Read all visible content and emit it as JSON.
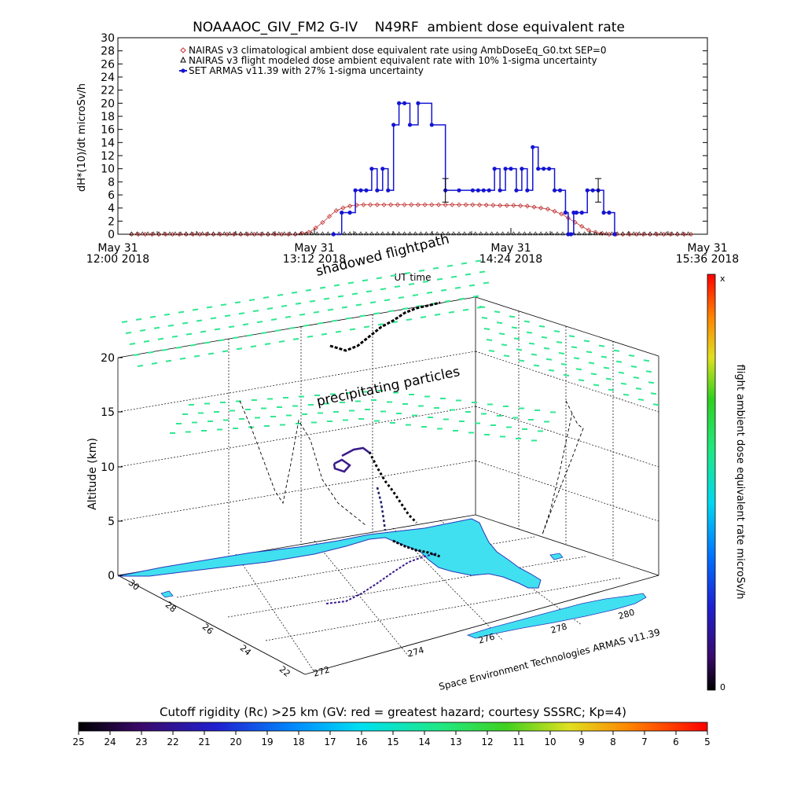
{
  "chart_data": [
    {
      "type": "line",
      "title": "NOAAAOC_GIV_FM2 G-IV    N49RF  ambient dose equivalent rate",
      "ylabel": "dH*(10)/dt microSv/h",
      "xlabel": "UT time",
      "ylim": [
        0,
        30
      ],
      "yticks": [
        "0",
        "2",
        "4",
        "6",
        "8",
        "10",
        "12",
        "14",
        "16",
        "18",
        "20",
        "22",
        "24",
        "26",
        "28",
        "30"
      ],
      "xlim_minutes_after_1200": [
        0,
        216
      ],
      "xticks": [
        {
          "minute": 0,
          "line1": "May 31",
          "line2": "12:00 2018"
        },
        {
          "minute": 72,
          "line1": "May 31",
          "line2": "13:12 2018"
        },
        {
          "minute": 144,
          "line1": "May 31",
          "line2": "14:24 2018"
        },
        {
          "minute": 216,
          "line1": "May 31",
          "line2": "15:36 2018"
        }
      ],
      "legend_position": "top",
      "legend": [
        {
          "label": "NAIRAS v3 climatological ambient dose equivalent rate using AmbDoseEq_G0.txt SEP=0",
          "color": "#c03030",
          "symbol": "diamond"
        },
        {
          "label": "NAIRAS v3 flight modeled dose ambient equivalent rate with 10% 1-sigma uncertainty",
          "color": "#000000",
          "symbol": "triangle"
        },
        {
          "label": "SET ARMAS v11.39 with 27% 1-sigma uncertainty",
          "color": "#1414d2",
          "symbol": "dot"
        }
      ],
      "series": [
        {
          "name": "NAIRAS v3 climatological ambient dose equivalent rate using AmbDoseEq_G0.txt SEP=0",
          "color": "#c03030",
          "x": [
            5,
            10,
            20,
            30,
            40,
            50,
            60,
            65,
            70,
            72,
            75,
            78,
            80,
            83,
            86,
            90,
            100,
            110,
            120,
            130,
            140,
            145,
            150,
            155,
            158,
            160,
            163,
            166,
            170,
            173,
            176,
            180,
            190,
            200,
            210
          ],
          "y": [
            0,
            0,
            0,
            0,
            0,
            0,
            0,
            0,
            0.3,
            0.8,
            1.8,
            2.9,
            3.6,
            4.1,
            4.4,
            4.5,
            4.5,
            4.5,
            4.5,
            4.5,
            4.4,
            4.4,
            4.3,
            4.0,
            3.8,
            3.5,
            3.0,
            2.2,
            1.2,
            0.5,
            0.2,
            0,
            0,
            0,
            0
          ]
        },
        {
          "name": "NAIRAS v3 flight modeled dose ambient equivalent rate with 10% 1-sigma uncertainty",
          "color": "#000000",
          "x": [
            5,
            20,
            40,
            60,
            70,
            80,
            90,
            100,
            110,
            120,
            130,
            140,
            150,
            160,
            165,
            175,
            190,
            210
          ],
          "y": [
            0,
            0,
            0,
            0,
            0,
            0,
            0,
            0,
            0,
            0,
            0,
            0,
            0,
            0,
            0,
            0,
            0,
            0
          ]
        },
        {
          "name": "SET ARMAS v11.39 with 27% 1-sigma uncertainty",
          "color": "#1414d2",
          "x": [
            79,
            82,
            85,
            87,
            89,
            91,
            93,
            95,
            97,
            99,
            101,
            103,
            105,
            107,
            110,
            115,
            120,
            125,
            130,
            132,
            134,
            136,
            138,
            140,
            142,
            144,
            146,
            148,
            150,
            152,
            154,
            156,
            158,
            160,
            162,
            164,
            165,
            166,
            167,
            168,
            170,
            172,
            174,
            176,
            178,
            180,
            182
          ],
          "y": [
            0,
            3.3,
            3.3,
            6.7,
            6.7,
            6.7,
            10,
            6.7,
            10,
            6.7,
            16.7,
            20,
            20,
            16.7,
            20,
            16.7,
            6.7,
            6.7,
            6.7,
            6.7,
            6.7,
            6.7,
            10,
            6.7,
            10,
            10,
            6.7,
            10,
            6.7,
            13.3,
            10,
            10,
            10,
            6.7,
            6.7,
            3.3,
            0,
            0,
            3.3,
            3.3,
            3.3,
            6.7,
            6.7,
            6.7,
            3.3,
            3.3,
            0
          ],
          "error_bars": [
            {
              "x": 120,
              "y": 6.7,
              "low": 4.9,
              "high": 8.5
            },
            {
              "x": 176,
              "y": 6.7,
              "low": 4.9,
              "high": 8.5
            }
          ]
        }
      ]
    },
    {
      "type": "scatter",
      "title": "shadowed flightpath",
      "annotations": [
        "precipitating particles",
        "Space Environment Technologies ARMAS v11.39"
      ],
      "zlabel": "Altitude (km)",
      "zticks": [
        "0",
        "5",
        "10",
        "15",
        "20"
      ],
      "yticks": [
        "30",
        "28",
        "26",
        "24",
        "22"
      ],
      "xticks": [
        "272",
        "274",
        "276",
        "278",
        "280"
      ],
      "colorbar": {
        "label": "flight ambient dose equivalent rate microSv/h",
        "top_label": "x",
        "bottom_label": "0"
      }
    },
    {
      "type": "heatmap",
      "title": "Cutoff rigidity (Rc) >25 km (GV: red = greatest hazard; courtesy SSSRC; Kp=4)",
      "colorbar_ticks": [
        "25",
        "24",
        "23",
        "22",
        "21",
        "20",
        "19",
        "18",
        "17",
        "16",
        "15",
        "14",
        "13",
        "12",
        "11",
        "10",
        "9",
        "8",
        "7",
        "6",
        "5"
      ]
    }
  ],
  "colors": {
    "land": "#40e0f0",
    "coast": "#2838b8",
    "particles": "#30e890",
    "flightpath": "#000000"
  }
}
